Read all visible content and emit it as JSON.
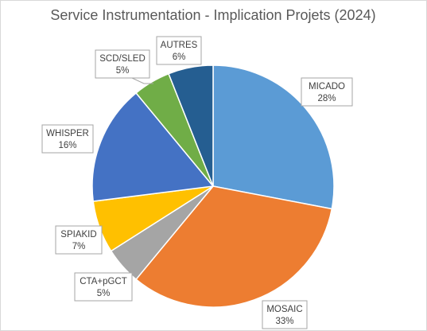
{
  "chart_data": {
    "type": "pie",
    "title": "Service Instrumentation - Implication Projets (2024)",
    "slices": [
      {
        "label": "MICADO",
        "percent_label": "28%",
        "value": 28,
        "color": "#5B9BD5"
      },
      {
        "label": "MOSAIC",
        "percent_label": "33%",
        "value": 33,
        "color": "#ED7D31"
      },
      {
        "label": "CTA+pGCT",
        "percent_label": "5%",
        "value": 5,
        "color": "#A5A5A5"
      },
      {
        "label": "SPIAKID",
        "percent_label": "7%",
        "value": 7,
        "color": "#FFC000"
      },
      {
        "label": "WHISPER",
        "percent_label": "16%",
        "value": 16,
        "color": "#4472C4"
      },
      {
        "label": "SCD/SLED",
        "percent_label": "5%",
        "value": 5,
        "color": "#70AD47"
      },
      {
        "label": "AUTRES",
        "percent_label": "6%",
        "value": 6,
        "color": "#255E91"
      }
    ],
    "start_angle_deg": 0,
    "direction": "clockwise",
    "data_labels": "category-and-percent-callouts",
    "legend": "none"
  }
}
